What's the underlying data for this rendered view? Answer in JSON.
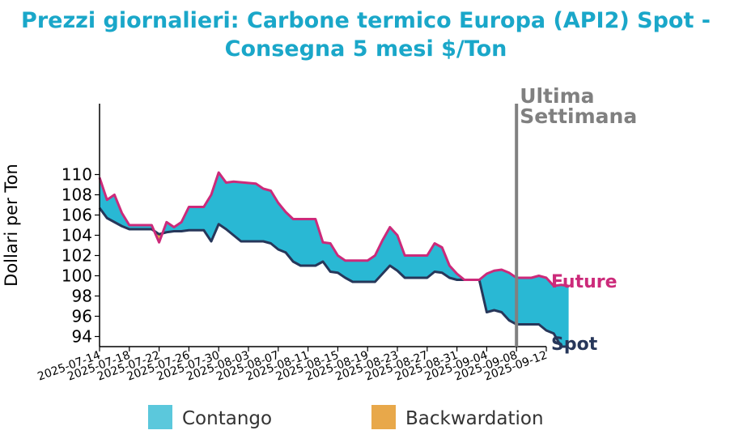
{
  "chart_data": {
    "type": "area",
    "title_lines": [
      "Prezzi giornalieri: Carbone termico Europa (API2) Spot -",
      "Consegna 5 mesi $/Ton"
    ],
    "ylabel": "Dollari per Ton",
    "ylim": [
      93,
      117
    ],
    "yticks": [
      94,
      96,
      98,
      100,
      102,
      104,
      106,
      108,
      110
    ],
    "xlim": [
      "2025-07-14",
      "2025-09-12"
    ],
    "xticks": [
      "2025-07-14",
      "2025-07-18",
      "2025-07-22",
      "2025-07-26",
      "2025-07-30",
      "2025-08-03",
      "2025-08-07",
      "2025-08-11",
      "2025-08-15",
      "2025-08-19",
      "2025-08-23",
      "2025-08-27",
      "2025-08-31",
      "2025-09-04",
      "2025-09-08",
      "2025-09-12"
    ],
    "series": [
      {
        "name": "Future",
        "values": [
          [
            "2025-07-14",
            109.7
          ],
          [
            "2025-07-15",
            107.5
          ],
          [
            "2025-07-16",
            108.0
          ],
          [
            "2025-07-17",
            106.2
          ],
          [
            "2025-07-18",
            105.0
          ],
          [
            "2025-07-21",
            105.0
          ],
          [
            "2025-07-22",
            103.3
          ],
          [
            "2025-07-23",
            105.3
          ],
          [
            "2025-07-24",
            104.8
          ],
          [
            "2025-07-25",
            105.3
          ],
          [
            "2025-07-26",
            106.8
          ],
          [
            "2025-07-28",
            106.8
          ],
          [
            "2025-07-29",
            108.0
          ],
          [
            "2025-07-30",
            110.2
          ],
          [
            "2025-07-31",
            109.2
          ],
          [
            "2025-08-01",
            109.3
          ],
          [
            "2025-08-04",
            109.1
          ],
          [
            "2025-08-05",
            108.6
          ],
          [
            "2025-08-06",
            108.4
          ],
          [
            "2025-08-07",
            107.2
          ],
          [
            "2025-08-08",
            106.3
          ],
          [
            "2025-08-09",
            105.6
          ],
          [
            "2025-08-12",
            105.6
          ],
          [
            "2025-08-13",
            103.3
          ],
          [
            "2025-08-14",
            103.2
          ],
          [
            "2025-08-15",
            102.0
          ],
          [
            "2025-08-16",
            101.5
          ],
          [
            "2025-08-19",
            101.5
          ],
          [
            "2025-08-20",
            102.0
          ],
          [
            "2025-08-21",
            103.5
          ],
          [
            "2025-08-22",
            104.8
          ],
          [
            "2025-08-23",
            104.0
          ],
          [
            "2025-08-24",
            102.0
          ],
          [
            "2025-08-27",
            102.0
          ],
          [
            "2025-08-28",
            103.2
          ],
          [
            "2025-08-29",
            102.8
          ],
          [
            "2025-08-30",
            101.0
          ],
          [
            "2025-08-31",
            100.2
          ],
          [
            "2025-09-01",
            99.6
          ],
          [
            "2025-09-03",
            99.6
          ],
          [
            "2025-09-04",
            100.2
          ],
          [
            "2025-09-05",
            100.5
          ],
          [
            "2025-09-06",
            100.6
          ],
          [
            "2025-09-07",
            100.3
          ],
          [
            "2025-09-08",
            99.8
          ],
          [
            "2025-09-10",
            99.8
          ],
          [
            "2025-09-11",
            100.0
          ],
          [
            "2025-09-12",
            99.8
          ],
          [
            "2025-09-13",
            99.0
          ],
          [
            "2025-09-14",
            99.1
          ],
          [
            "2025-09-15",
            99.0
          ]
        ]
      },
      {
        "name": "Spot",
        "values": [
          [
            "2025-07-14",
            106.7
          ],
          [
            "2025-07-15",
            105.7
          ],
          [
            "2025-07-16",
            105.3
          ],
          [
            "2025-07-17",
            104.9
          ],
          [
            "2025-07-18",
            104.6
          ],
          [
            "2025-07-21",
            104.6
          ],
          [
            "2025-07-22",
            104.1
          ],
          [
            "2025-07-23",
            104.3
          ],
          [
            "2025-07-24",
            104.4
          ],
          [
            "2025-07-25",
            104.4
          ],
          [
            "2025-07-26",
            104.5
          ],
          [
            "2025-07-28",
            104.5
          ],
          [
            "2025-07-29",
            103.4
          ],
          [
            "2025-07-30",
            105.1
          ],
          [
            "2025-07-31",
            104.6
          ],
          [
            "2025-08-01",
            104.0
          ],
          [
            "2025-08-02",
            103.4
          ],
          [
            "2025-08-05",
            103.4
          ],
          [
            "2025-08-06",
            103.2
          ],
          [
            "2025-08-07",
            102.6
          ],
          [
            "2025-08-08",
            102.3
          ],
          [
            "2025-08-09",
            101.4
          ],
          [
            "2025-08-10",
            101.0
          ],
          [
            "2025-08-12",
            101.0
          ],
          [
            "2025-08-13",
            101.4
          ],
          [
            "2025-08-14",
            100.4
          ],
          [
            "2025-08-15",
            100.3
          ],
          [
            "2025-08-16",
            99.8
          ],
          [
            "2025-08-17",
            99.4
          ],
          [
            "2025-08-20",
            99.4
          ],
          [
            "2025-08-21",
            100.2
          ],
          [
            "2025-08-22",
            101.0
          ],
          [
            "2025-08-23",
            100.5
          ],
          [
            "2025-08-24",
            99.8
          ],
          [
            "2025-08-27",
            99.8
          ],
          [
            "2025-08-28",
            100.4
          ],
          [
            "2025-08-29",
            100.3
          ],
          [
            "2025-08-30",
            99.8
          ],
          [
            "2025-08-31",
            99.6
          ],
          [
            "2025-09-03",
            99.6
          ],
          [
            "2025-09-04",
            96.4
          ],
          [
            "2025-09-05",
            96.6
          ],
          [
            "2025-09-06",
            96.4
          ],
          [
            "2025-09-07",
            95.6
          ],
          [
            "2025-09-08",
            95.2
          ],
          [
            "2025-09-11",
            95.2
          ],
          [
            "2025-09-12",
            94.6
          ],
          [
            "2025-09-13",
            94.3
          ],
          [
            "2025-09-14",
            93.0
          ],
          [
            "2025-09-15",
            93.0
          ]
        ]
      }
    ],
    "annotations": [
      {
        "text": "Ultima\nSettimana",
        "at_date": "2025-09-08",
        "type": "vertical-line"
      }
    ],
    "end_labels": {
      "future": "Future",
      "spot": "Spot"
    },
    "legend": {
      "placement": "bottom",
      "items": [
        {
          "label": "Contango",
          "color": "#5bc8dc"
        },
        {
          "label": "Backwardation",
          "color": "#e8a84a"
        }
      ]
    },
    "grid": false,
    "colors": {
      "title": "#1aa7c9",
      "future": "#cc2a7a",
      "spot": "#27375a",
      "contango_fill": "#29b8d4",
      "backwardation_fill": "#e8a84a",
      "last_week_line": "#808080",
      "last_week_text": "#808080"
    }
  }
}
